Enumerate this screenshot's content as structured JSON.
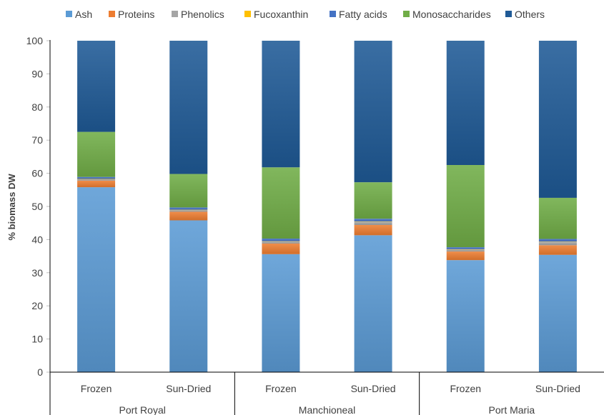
{
  "chart_data": {
    "type": "bar",
    "stacked": true,
    "ylabel": "% biomass DW",
    "ylim": [
      0,
      100
    ],
    "yticks": [
      0,
      10,
      20,
      30,
      40,
      50,
      60,
      70,
      80,
      90,
      100
    ],
    "grid": false,
    "legend_position": "top",
    "groups": [
      {
        "name": "Port Royal",
        "categories": [
          "Frozen",
          "Sun-Dried"
        ]
      },
      {
        "name": "Manchioneal",
        "categories": [
          "Frozen",
          "Sun-Dried"
        ]
      },
      {
        "name": "Port Maria",
        "categories": [
          "Frozen",
          "Sun-Dried"
        ]
      }
    ],
    "series": [
      {
        "name": "Ash",
        "color": "#5B9BD5",
        "values": [
          55.8,
          45.8,
          35.6,
          41.3,
          33.8,
          35.4
        ]
      },
      {
        "name": "Proteins",
        "color": "#ED7D31",
        "values": [
          2.0,
          2.6,
          3.2,
          3.1,
          2.6,
          2.9
        ]
      },
      {
        "name": "Phenolics",
        "color": "#A5A5A5",
        "values": [
          0.4,
          0.5,
          0.6,
          1.0,
          0.6,
          1.0
        ]
      },
      {
        "name": "Fucoxanthin",
        "color": "#FFC000",
        "values": [
          0.1,
          0.1,
          0.1,
          0.1,
          0.1,
          0.1
        ]
      },
      {
        "name": "Fatty acids",
        "color": "#4472C4",
        "values": [
          0.6,
          0.7,
          0.8,
          0.8,
          0.6,
          0.8
        ]
      },
      {
        "name": "Monosaccharides",
        "color": "#70AD47",
        "values": [
          13.6,
          10.1,
          21.5,
          11.0,
          24.8,
          12.4
        ]
      },
      {
        "name": "Others",
        "color": "#1F5A96",
        "values": [
          27.5,
          40.2,
          38.2,
          42.7,
          37.5,
          47.4
        ]
      }
    ]
  }
}
